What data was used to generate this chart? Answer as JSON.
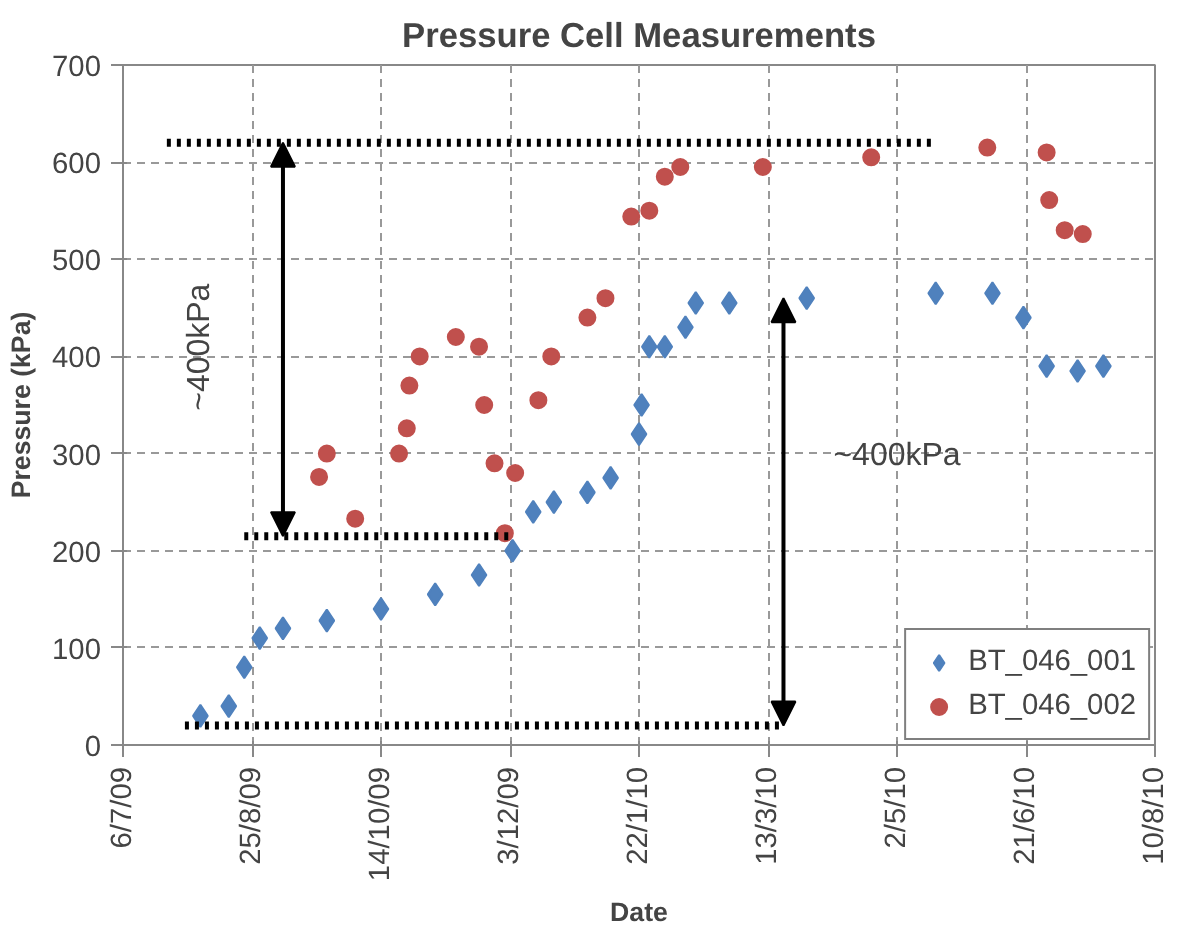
{
  "chart_data": {
    "type": "scatter",
    "title": "Pressure Cell Measurements",
    "xlabel": "Date",
    "ylabel": "Pressure (kPa)",
    "xlim": [
      "2009-07-06",
      "2010-08-10"
    ],
    "ylim": [
      0,
      700
    ],
    "yticks": [
      0,
      100,
      200,
      300,
      400,
      500,
      600,
      700
    ],
    "xticks": [
      {
        "value": "2009-07-06",
        "label": "6/7/09"
      },
      {
        "value": "2009-08-25",
        "label": "25/8/09"
      },
      {
        "value": "2009-10-14",
        "label": "14/10/09"
      },
      {
        "value": "2009-12-03",
        "label": "3/12/09"
      },
      {
        "value": "2010-01-22",
        "label": "22/1/10"
      },
      {
        "value": "2010-03-13",
        "label": "13/3/10"
      },
      {
        "value": "2010-05-02",
        "label": "2/5/10"
      },
      {
        "value": "2010-06-21",
        "label": "21/6/10"
      },
      {
        "value": "2010-08-10",
        "label": "10/8/10"
      }
    ],
    "grid": true,
    "legend": "bottom right",
    "series": [
      {
        "name": "BT_046_001",
        "color": "#4f81bd",
        "marker": "diamond",
        "x": [
          "2009-08-05",
          "2009-08-16",
          "2009-08-22",
          "2009-08-28",
          "2009-09-06",
          "2009-09-23",
          "2009-10-14",
          "2009-11-04",
          "2009-11-21",
          "2009-12-04",
          "2009-12-12",
          "2009-12-20",
          "2010-01-02",
          "2010-01-11",
          "2010-01-22",
          "2010-01-23",
          "2010-01-26",
          "2010-02-01",
          "2010-02-09",
          "2010-02-13",
          "2010-02-26",
          "2010-03-28",
          "2010-05-17",
          "2010-06-08",
          "2010-06-20",
          "2010-06-29",
          "2010-07-11",
          "2010-07-21"
        ],
        "values": [
          30,
          40,
          80,
          110,
          120,
          128,
          140,
          155,
          175,
          200,
          240,
          250,
          260,
          275,
          320,
          350,
          410,
          410,
          430,
          455,
          455,
          460,
          465,
          465,
          440,
          390,
          385,
          390
        ]
      },
      {
        "name": "BT_046_002",
        "color": "#c0504d",
        "marker": "circle",
        "x": [
          "2009-09-20",
          "2009-09-23",
          "2009-10-04",
          "2009-10-21",
          "2009-10-24",
          "2009-10-25",
          "2009-10-29",
          "2009-11-12",
          "2009-11-21",
          "2009-11-23",
          "2009-11-27",
          "2009-12-01",
          "2009-12-05",
          "2009-12-14",
          "2009-12-19",
          "2010-01-02",
          "2010-01-09",
          "2010-01-19",
          "2010-01-26",
          "2010-02-01",
          "2010-02-07",
          "2010-03-11",
          "2010-04-22",
          "2010-06-06",
          "2010-06-29",
          "2010-06-30",
          "2010-07-06",
          "2010-07-13"
        ],
        "values": [
          276,
          300,
          233,
          300,
          326,
          370,
          400,
          420,
          410,
          350,
          290,
          218,
          280,
          355,
          400,
          440,
          460,
          544,
          550,
          585,
          595,
          595,
          605,
          615,
          610,
          561,
          530,
          526
        ]
      },
      {
        "type": "line",
        "color": "#000000",
        "line_style": "dotted",
        "x": [
          "2009-07-23",
          "2010-05-17"
        ],
        "values": [
          620,
          620
        ]
      },
      {
        "type": "line",
        "color": "#000000",
        "line_style": "dotted",
        "x": [
          "2009-08-22",
          "2009-12-04"
        ],
        "values": [
          215,
          215
        ]
      },
      {
        "type": "line",
        "color": "#000000",
        "line_style": "dotted",
        "x": [
          "2009-07-30",
          "2010-03-19"
        ],
        "values": [
          20,
          20
        ]
      }
    ],
    "annotations": [
      "~400kPa",
      "~400kPa"
    ]
  }
}
